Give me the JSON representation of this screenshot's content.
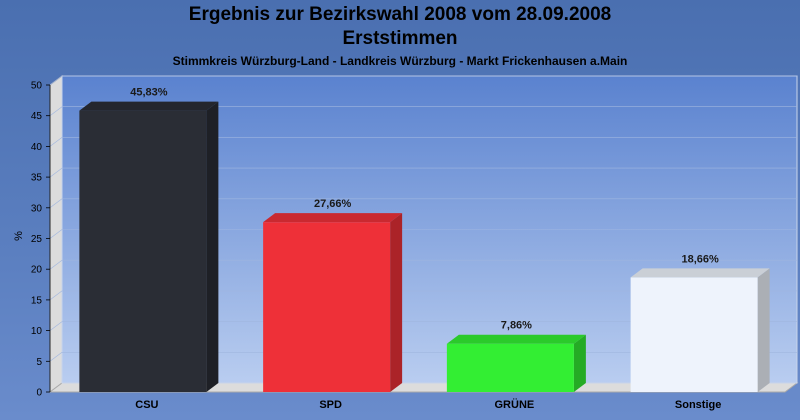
{
  "chart_data": {
    "type": "bar",
    "title": "Ergebnis zur Bezirkswahl 2008 vom 28.09.2008",
    "subtitle": "Erststimmen",
    "subtitle2": "Stimmkreis Würzburg-Land - Landkreis Würzburg - Markt Frickenhausen a.Main",
    "ylabel": "%",
    "ylim": [
      0,
      50
    ],
    "yticks": [
      0,
      5,
      10,
      15,
      20,
      25,
      30,
      35,
      40,
      45,
      50
    ],
    "categories": [
      "CSU",
      "SPD",
      "GRÜNE",
      "Sonstige"
    ],
    "values": [
      45.83,
      27.66,
      7.86,
      18.66
    ],
    "value_labels": [
      "45,83%",
      "27,66%",
      "7,86%",
      "18,66%"
    ],
    "colors": [
      "#2a2d35",
      "#ee3038",
      "#33ee33",
      "#eef3fc"
    ],
    "grid": true
  }
}
